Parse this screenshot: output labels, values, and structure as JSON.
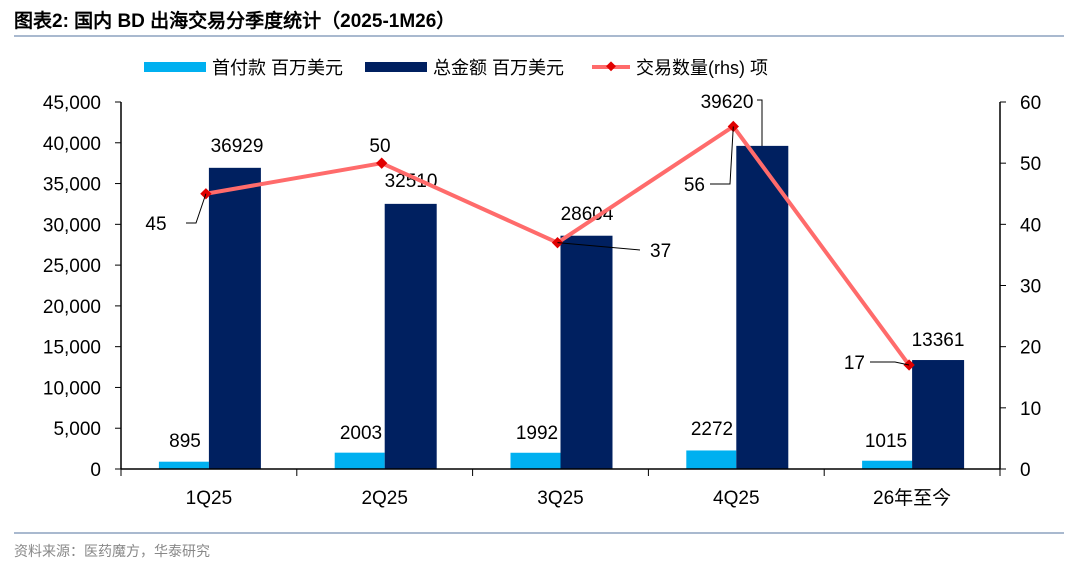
{
  "title": "图表2:  国内 BD 出海交易分季度统计（2025-1M26）",
  "source": "资料来源：医药魔方，华泰研究",
  "chart_data": {
    "type": "bar+line",
    "categories": [
      "1Q25",
      "2Q25",
      "3Q25",
      "4Q25",
      "26年至今"
    ],
    "series": [
      {
        "name": "首付款 百万美元",
        "type": "bar",
        "axis": "left",
        "color": "#00b0f0",
        "values": [
          895,
          2003,
          1992,
          2272,
          1015
        ]
      },
      {
        "name": "总金额 百万美元",
        "type": "bar",
        "axis": "left",
        "color": "#002060",
        "values": [
          36929,
          32510,
          28604,
          39620,
          13361
        ]
      },
      {
        "name": "交易数量(rhs) 项",
        "type": "line",
        "axis": "right",
        "color": "#ff6b6b",
        "marker_color": "#e00000",
        "values": [
          45,
          50,
          37,
          56,
          17
        ]
      }
    ],
    "left_axis": {
      "ylim": [
        0,
        45000
      ],
      "ticks": [
        "0",
        "5,000",
        "10,000",
        "15,000",
        "20,000",
        "25,000",
        "30,000",
        "35,000",
        "40,000",
        "45,000"
      ]
    },
    "right_axis": {
      "ylim": [
        0,
        60
      ],
      "ticks": [
        "0",
        "10",
        "20",
        "30",
        "40",
        "50",
        "60"
      ]
    },
    "legend_position": "top",
    "grid": false
  }
}
